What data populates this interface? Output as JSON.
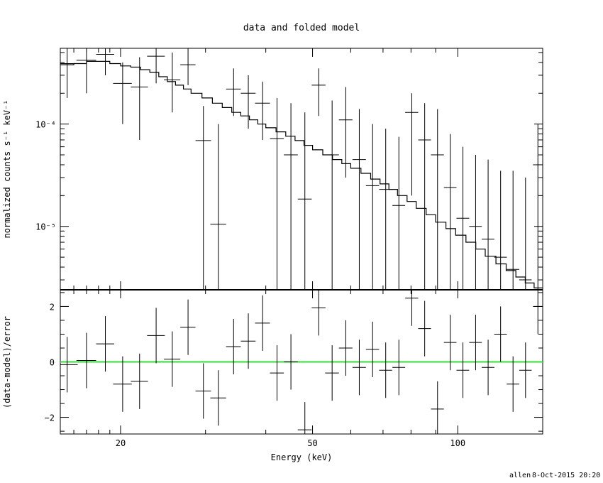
{
  "footer": {
    "user": "allen",
    "timestamp": "8-Oct-2015 20:20"
  },
  "chart_data": [
    {
      "panel": "upper",
      "type": "line",
      "title": "data and folded model",
      "xlabel": "Energy (keV)",
      "ylabel": "normalized counts s⁻¹ keV⁻¹",
      "xscale": "log",
      "yscale": "log",
      "xlim": [
        15,
        150
      ],
      "ylim": [
        2.4e-06,
        0.00055
      ],
      "y_tick_labels": [
        "10⁻⁴",
        "10⁻⁵"
      ],
      "y_tick_values": [
        0.0001,
        1e-05
      ],
      "data_color": "#000000",
      "series": [
        {
          "kind": "data-crosses",
          "x": [
            15.5,
            17.0,
            18.6,
            20.2,
            21.9,
            23.7,
            25.6,
            27.6,
            29.7,
            31.9,
            34.3,
            36.8,
            39.4,
            42.2,
            45.1,
            48.2,
            51.5,
            54.9,
            58.6,
            62.5,
            66.6,
            70.9,
            75.5,
            80.3,
            85.4,
            90.8,
            96.5,
            102.5,
            108.9,
            115.6,
            122.7,
            130.2,
            138.2,
            146.6
          ],
          "y": [
            0.00039,
            0.00042,
            0.00048,
            0.00025,
            0.00023,
            0.00046,
            0.00027,
            0.00038,
            6.9e-05,
            1.05e-05,
            0.00022,
            0.0002,
            0.00016,
            7.2e-05,
            5e-05,
            1.85e-05,
            0.00024,
            5e-05,
            0.00011,
            4.5e-05,
            2.5e-05,
            2.3e-05,
            1.6e-05,
            0.00013,
            7e-05,
            5e-05,
            2.4e-05,
            1.2e-05,
            1e-05,
            7.5e-06,
            5e-06,
            3.8e-06,
            3e-06,
            4e-05
          ],
          "xerr": [
            0.8,
            0.8,
            0.8,
            0.9,
            0.9,
            1.0,
            1.0,
            1.0,
            1.1,
            1.2,
            1.2,
            1.3,
            1.4,
            1.4,
            1.5,
            1.6,
            1.7,
            1.8,
            1.9,
            2.0,
            2.1,
            2.2,
            2.3,
            2.5,
            2.6,
            2.8,
            2.9,
            3.1,
            3.3,
            3.5,
            3.7,
            3.9,
            4.1,
            3.4
          ],
          "ylo": [
            0.00018,
            0.0002,
            0.0003,
            0.0001,
            7e-05,
            0.00025,
            0.00013,
            0.00024,
            2.4e-06,
            2.4e-06,
            0.00012,
            9e-05,
            7e-05,
            2.4e-06,
            2.4e-06,
            2.4e-06,
            0.00012,
            2.4e-06,
            3e-05,
            2.4e-06,
            2.4e-06,
            2.4e-06,
            2.4e-06,
            2e-05,
            2.4e-06,
            2.4e-06,
            2.4e-06,
            2.4e-06,
            2.4e-06,
            2.4e-06,
            2.4e-06,
            2.4e-06,
            2.4e-06,
            2.4e-06
          ],
          "yhi": [
            0.00055,
            0.00055,
            0.00055,
            0.0004,
            0.00045,
            0.00055,
            0.0005,
            0.00055,
            0.00015,
            0.0001,
            0.00035,
            0.0003,
            0.00026,
            0.00018,
            0.00016,
            0.00013,
            0.00035,
            0.00017,
            0.00023,
            0.00014,
            0.0001,
            9e-05,
            7.5e-05,
            0.0002,
            0.00016,
            0.00014,
            8e-05,
            6e-05,
            5e-05,
            4.5e-05,
            3.5e-05,
            3.5e-05,
            3e-05,
            0.0001
          ]
        },
        {
          "kind": "model-histogram",
          "edges": [
            15.0,
            16.0,
            17.0,
            18.0,
            19.0,
            20.0,
            21.0,
            22.0,
            23.0,
            24.0,
            25.0,
            26.0,
            27.0,
            28.0,
            29.5,
            31.0,
            32.5,
            34.0,
            35.5,
            37.0,
            38.5,
            40.0,
            42.0,
            44.0,
            46.0,
            48.0,
            50.0,
            52.5,
            55.0,
            57.5,
            60.0,
            63.0,
            66.0,
            69.0,
            72.0,
            75.0,
            78.5,
            82.0,
            86.0,
            90.0,
            94.5,
            99.0,
            104.0,
            109.0,
            114.0,
            120.0,
            126.0,
            132.0,
            138.0,
            144.0,
            150.0
          ],
          "values": [
            0.00038,
            0.00039,
            0.00041,
            0.00041,
            0.00039,
            0.00037,
            0.00036,
            0.00034,
            0.00032,
            0.00029,
            0.00026,
            0.00024,
            0.00022,
            0.0002,
            0.00018,
            0.00016,
            0.000145,
            0.00013,
            0.00012,
            0.00011,
            0.0001,
            9.2e-05,
            8.4e-05,
            7.6e-05,
            6.9e-05,
            6.2e-05,
            5.6e-05,
            5e-05,
            4.5e-05,
            4.1e-05,
            3.7e-05,
            3.3e-05,
            2.9e-05,
            2.6e-05,
            2.3e-05,
            2e-05,
            1.75e-05,
            1.5e-05,
            1.3e-05,
            1.1e-05,
            9.5e-06,
            8.2e-06,
            7e-06,
            6e-06,
            5.1e-06,
            4.3e-06,
            3.7e-06,
            3.2e-06,
            2.8e-06,
            2.5e-06
          ]
        }
      ]
    },
    {
      "panel": "lower",
      "type": "scatter",
      "xlabel": "Energy (keV)",
      "ylabel": "(data-model)/error",
      "xscale": "log",
      "xlim": [
        15,
        150
      ],
      "ylim": [
        -2.6,
        2.6
      ],
      "x_tick_labels": [
        "20",
        "50",
        "100"
      ],
      "x_tick_values": [
        20,
        50,
        100
      ],
      "y_tick_labels": [
        "2",
        "0",
        "−2"
      ],
      "y_tick_values": [
        2,
        0,
        -2
      ],
      "zero_line_color": "#33dd33",
      "series": [
        {
          "kind": "residual-crosses",
          "x": [
            15.5,
            17.0,
            18.6,
            20.2,
            21.9,
            23.7,
            25.6,
            27.6,
            29.7,
            31.9,
            34.3,
            36.8,
            39.4,
            42.2,
            45.1,
            48.2,
            51.5,
            54.9,
            58.6,
            62.5,
            66.6,
            70.9,
            75.5,
            80.3,
            85.4,
            90.8,
            96.5,
            102.5,
            108.9,
            115.6,
            122.7,
            130.2,
            138.2,
            146.6
          ],
          "y": [
            -0.1,
            0.05,
            0.65,
            -0.8,
            -0.7,
            0.95,
            0.1,
            1.25,
            -1.05,
            -1.3,
            0.55,
            0.75,
            1.4,
            -0.4,
            0.0,
            -2.45,
            1.95,
            -0.4,
            0.5,
            -0.2,
            0.45,
            -0.3,
            -0.2,
            2.3,
            1.2,
            -1.7,
            0.7,
            -0.3,
            0.7,
            -0.2,
            1.0,
            -0.8,
            -0.3,
            2.0
          ],
          "xerr": [
            0.8,
            0.8,
            0.8,
            0.9,
            0.9,
            1.0,
            1.0,
            1.0,
            1.1,
            1.2,
            1.2,
            1.3,
            1.4,
            1.4,
            1.5,
            1.6,
            1.7,
            1.8,
            1.9,
            2.0,
            2.1,
            2.2,
            2.3,
            2.5,
            2.6,
            2.8,
            2.9,
            3.1,
            3.3,
            3.5,
            3.7,
            3.9,
            4.1,
            3.4
          ],
          "yerr": [
            1.0,
            1.0,
            1.0,
            1.0,
            1.0,
            1.0,
            1.0,
            1.0,
            1.0,
            1.0,
            1.0,
            1.0,
            1.0,
            1.0,
            1.0,
            1.0,
            1.0,
            1.0,
            1.0,
            1.0,
            1.0,
            1.0,
            1.0,
            1.0,
            1.0,
            1.0,
            1.0,
            1.0,
            1.0,
            1.0,
            1.0,
            1.0,
            1.0,
            1.0
          ]
        }
      ]
    }
  ]
}
